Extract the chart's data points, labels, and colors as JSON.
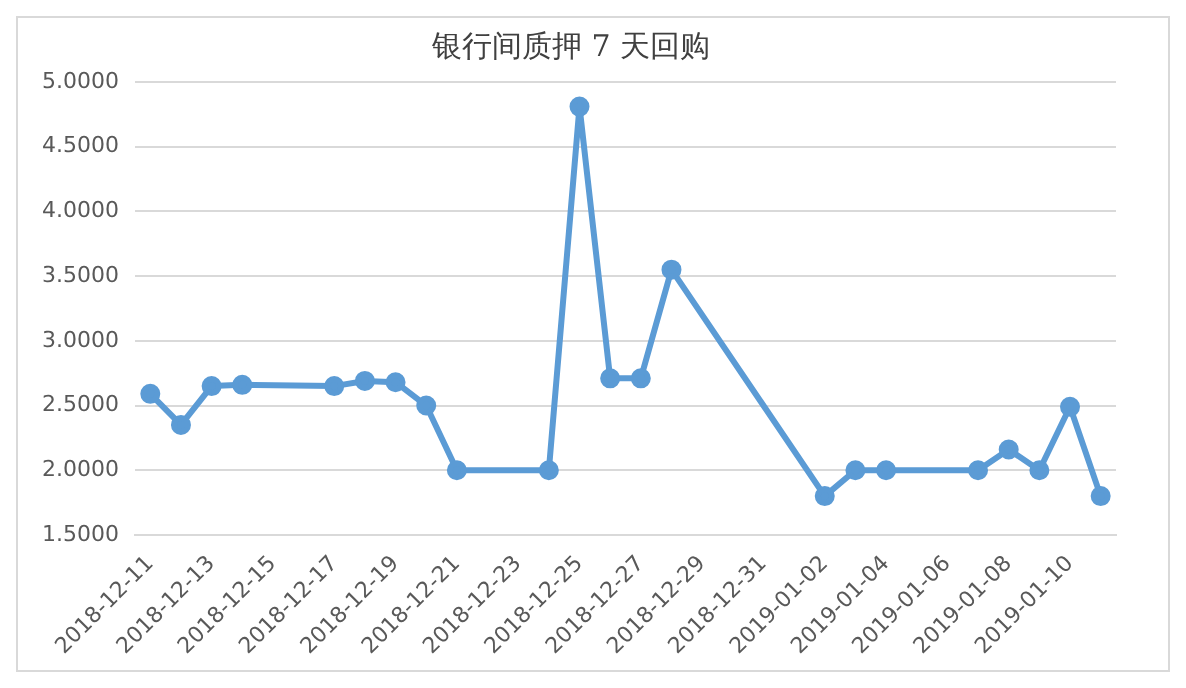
{
  "chart_data": {
    "type": "line",
    "title": "银行间质押 7 天回购",
    "x": [
      "2018-12-11",
      "2018-12-12",
      "2018-12-13",
      "2018-12-14",
      "2018-12-17",
      "2018-12-18",
      "2018-12-19",
      "2018-12-20",
      "2018-12-21",
      "2018-12-24",
      "2018-12-25",
      "2018-12-26",
      "2018-12-27",
      "2018-12-28",
      "2019-01-02",
      "2019-01-03",
      "2019-01-04",
      "2019-01-07",
      "2019-01-08",
      "2019-01-09",
      "2019-01-10",
      "2019-01-11"
    ],
    "series": [
      {
        "color": "#5b9bd5",
        "values": [
          2.59,
          2.35,
          2.65,
          2.66,
          2.65,
          2.69,
          2.68,
          2.5,
          2.0,
          2.0,
          4.81,
          2.71,
          2.71,
          3.55,
          1.8,
          2.0,
          2.0,
          2.0,
          2.16,
          2.0,
          2.49,
          1.8
        ]
      }
    ],
    "xlim": [
      "2018-12-10T12:00",
      "2019-01-11T12:00"
    ],
    "xticks": [
      "2018-12-11",
      "2018-12-13",
      "2018-12-15",
      "2018-12-17",
      "2018-12-19",
      "2018-12-21",
      "2018-12-23",
      "2018-12-25",
      "2018-12-27",
      "2018-12-29",
      "2018-12-31",
      "2019-01-02",
      "2019-01-04",
      "2019-01-06",
      "2019-01-08",
      "2019-01-10"
    ],
    "ylim": [
      1.5,
      5.0
    ],
    "yticks": [
      {
        "value": 1.5,
        "label": "1.5000"
      },
      {
        "value": 2.0,
        "label": "2.0000"
      },
      {
        "value": 2.5,
        "label": "2.5000"
      },
      {
        "value": 3.0,
        "label": "3.0000"
      },
      {
        "value": 3.5,
        "label": "3.5000"
      },
      {
        "value": 4.0,
        "label": "4.0000"
      },
      {
        "value": 4.5,
        "label": "4.5000"
      },
      {
        "value": 5.0,
        "label": "5.0000"
      }
    ],
    "grid": "y",
    "legend": false,
    "marker": "circle",
    "line_style": "solid"
  }
}
